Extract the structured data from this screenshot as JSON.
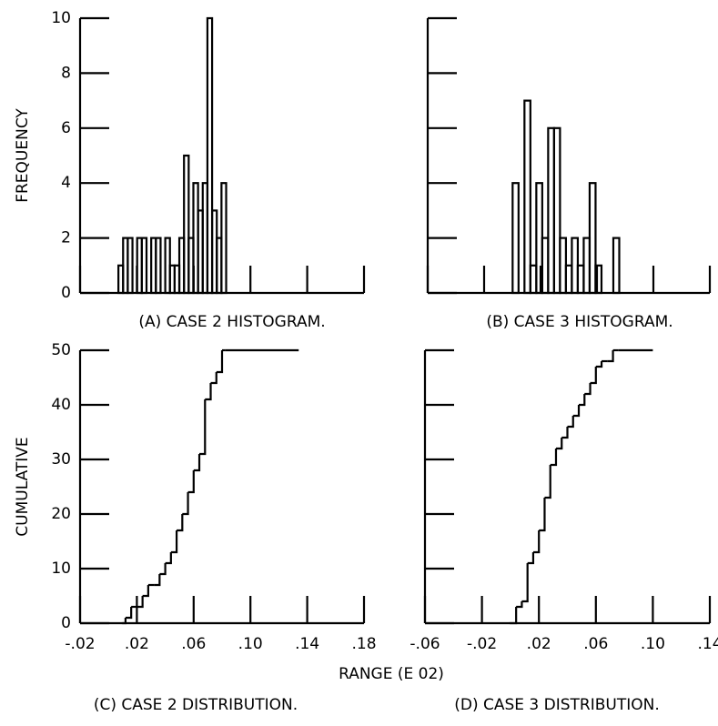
{
  "chart_data": [
    {
      "type": "histogram",
      "caption": "(A) CASE 2 HISTOGRAM.",
      "ylabel": "FREQUENCY",
      "bins": [
        0.007,
        0.0103,
        0.0136,
        0.0169,
        0.0202,
        0.0235,
        0.0268,
        0.0301,
        0.0334,
        0.0367,
        0.04,
        0.0433,
        0.0466,
        0.0499,
        0.0532,
        0.0565,
        0.0598,
        0.0631,
        0.0664,
        0.0697,
        0.073,
        0.0763,
        0.0796,
        0.0829
      ],
      "values": [
        1,
        2,
        2,
        0,
        2,
        2,
        0,
        2,
        2,
        0,
        2,
        1,
        1,
        2,
        5,
        2,
        4,
        3,
        4,
        10,
        3,
        2,
        4
      ],
      "xlim": [
        -0.02,
        0.18
      ],
      "xticks": [
        -0.02,
        0.02,
        0.06,
        0.1,
        0.14,
        0.18
      ],
      "ylim": [
        0,
        10
      ],
      "yticks": [
        0,
        2,
        4,
        6,
        8,
        10
      ]
    },
    {
      "type": "histogram",
      "caption": "(B) CASE 3 HISTOGRAM.",
      "bins": [
        0.0002,
        0.0044,
        0.0086,
        0.0128,
        0.017,
        0.0212,
        0.0254,
        0.0296,
        0.0338,
        0.038,
        0.0422,
        0.0464,
        0.0506,
        0.0548,
        0.059,
        0.0632,
        0.0674,
        0.0716,
        0.0758
      ],
      "values": [
        4,
        0,
        7,
        1,
        4,
        2,
        6,
        6,
        2,
        1,
        2,
        1,
        2,
        4,
        1,
        0,
        0,
        2
      ],
      "xlim": [
        -0.06,
        0.14
      ],
      "xticks": [
        -0.06,
        -0.02,
        0.02,
        0.06,
        0.1,
        0.14
      ],
      "ylim": [
        0,
        10
      ],
      "yticks": [
        0,
        2,
        4,
        6,
        8,
        10
      ]
    },
    {
      "type": "step",
      "caption": "(C) CASE 2 DISTRIBUTION.",
      "ylabel": "CUMULATIVE",
      "xlabel": "RANGE (E 02)",
      "x": [
        0.01,
        0.012,
        0.016,
        0.02,
        0.024,
        0.028,
        0.032,
        0.036,
        0.04,
        0.044,
        0.048,
        0.052,
        0.056,
        0.06,
        0.064,
        0.068,
        0.072,
        0.076,
        0.08,
        0.082,
        0.134
      ],
      "values": [
        0,
        1,
        3,
        3,
        5,
        7,
        7,
        9,
        11,
        13,
        17,
        20,
        24,
        28,
        31,
        41,
        44,
        46,
        50,
        50,
        50
      ],
      "xlim": [
        -0.02,
        0.18
      ],
      "xticks": [
        {
          "value": -0.02,
          "label": "-.02"
        },
        {
          "value": 0.02,
          "label": ".02"
        },
        {
          "value": 0.06,
          "label": ".06"
        },
        {
          "value": 0.1,
          "label": ".10"
        },
        {
          "value": 0.14,
          "label": ".14"
        },
        {
          "value": 0.18,
          "label": ".18"
        }
      ],
      "ylim": [
        0,
        50
      ],
      "yticks": [
        0,
        10,
        20,
        30,
        40,
        50
      ]
    },
    {
      "type": "step",
      "caption": "(D) CASE 3 DISTRIBUTION.",
      "x": [
        0.0,
        0.004,
        0.008,
        0.012,
        0.016,
        0.02,
        0.024,
        0.028,
        0.032,
        0.036,
        0.04,
        0.044,
        0.048,
        0.052,
        0.056,
        0.06,
        0.064,
        0.068,
        0.072,
        0.076,
        0.1
      ],
      "values": [
        0,
        3,
        4,
        11,
        13,
        17,
        23,
        29,
        32,
        34,
        36,
        38,
        40,
        42,
        44,
        47,
        48,
        48,
        50,
        50,
        50
      ],
      "xlim": [
        -0.06,
        0.14
      ],
      "xticks": [
        {
          "value": -0.06,
          "label": "-.06"
        },
        {
          "value": -0.02,
          "label": "-.02"
        },
        {
          "value": 0.02,
          "label": ".02"
        },
        {
          "value": 0.06,
          "label": ".06"
        },
        {
          "value": 0.1,
          "label": ".10"
        },
        {
          "value": 0.14,
          "label": ".14"
        }
      ],
      "ylim": [
        0,
        50
      ],
      "yticks": [
        0,
        10,
        20,
        30,
        40,
        50
      ]
    }
  ]
}
